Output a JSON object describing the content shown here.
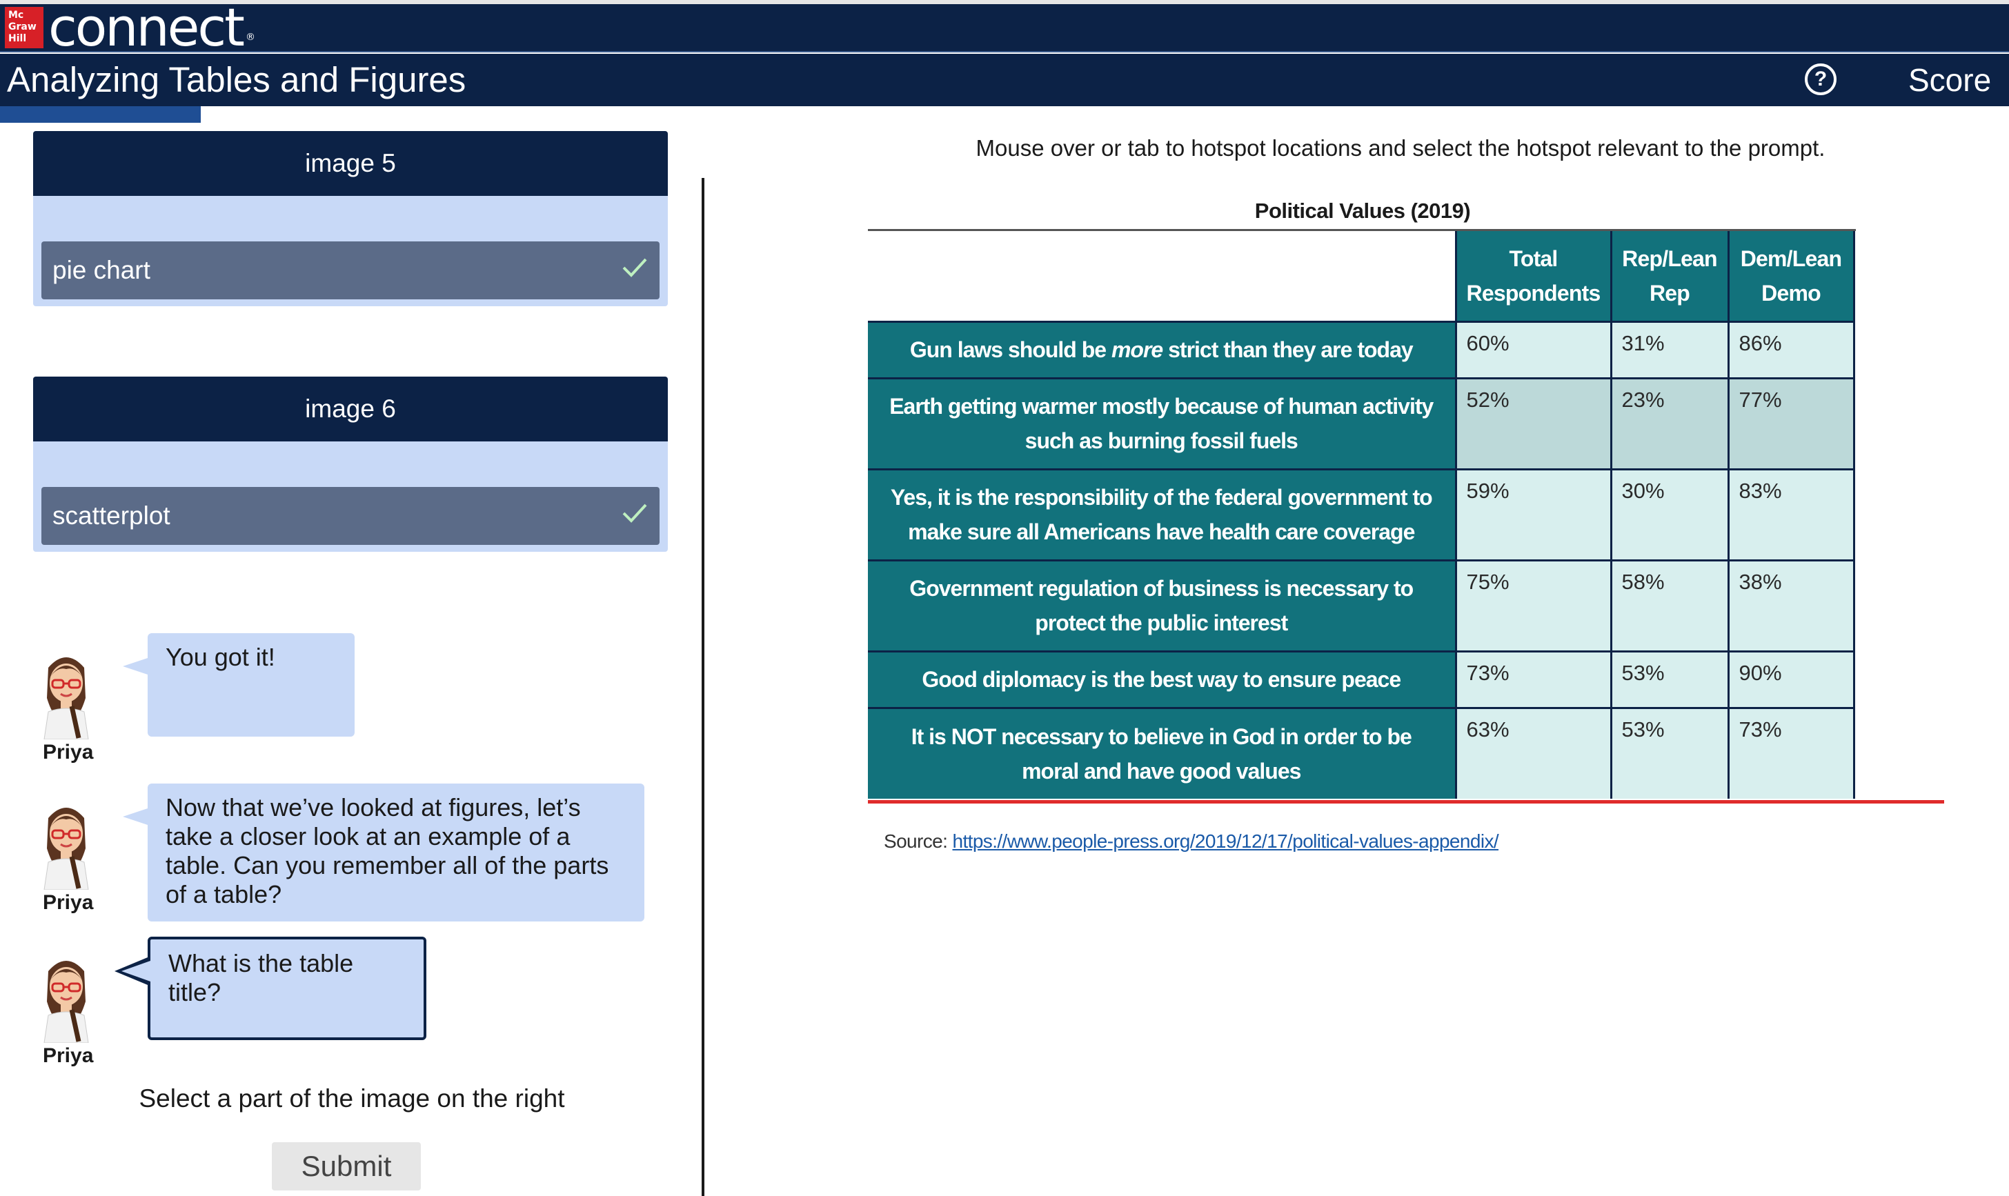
{
  "brand": {
    "logo_text": [
      "Mc",
      "Graw",
      "Hill"
    ],
    "product_name": "connect",
    "product_mark": "®"
  },
  "header": {
    "title": "Analyzing Tables and Figures",
    "help_icon": "question-circle-icon",
    "score_label": "Score",
    "progress_percent": 10
  },
  "cards": [
    {
      "heading": "image 5",
      "answer": "pie chart",
      "status_icon": "checkmark-icon"
    },
    {
      "heading": "image 6",
      "answer": "scatterplot",
      "status_icon": "checkmark-icon"
    }
  ],
  "chat": {
    "speaker": "Priya",
    "messages": [
      {
        "speaker": "Priya",
        "text": "You got it!"
      },
      {
        "speaker": "Priya",
        "text": "Now that we’ve looked at figures, let’s take a closer look at an example of a table.  Can you remember all of the parts of a table?"
      },
      {
        "speaker": "Priya",
        "text": "What is the table title?"
      }
    ]
  },
  "instruction": "Select a part of the image on the right",
  "submit_label": "Submit",
  "right_panel": {
    "prompt": "Mouse over or tab to hotspot locations and select the hotspot relevant to the prompt.",
    "table": {
      "title": "Political Values (2019)",
      "columns": [
        {
          "line1": "Total",
          "line2": "Respondents"
        },
        {
          "line1": "Rep/Lean",
          "line2": "Rep"
        },
        {
          "line1": "Dem/Lean",
          "line2": "Demo"
        }
      ],
      "rows": [
        {
          "pre": "Gun laws should be ",
          "em": "more",
          "post": " strict than they are today",
          "line2": "",
          "values": [
            "60%",
            "31%",
            "86%"
          ]
        },
        {
          "pre": "Earth getting warmer mostly because of human activity",
          "em": "",
          "post": "",
          "line2": "such as burning fossil fuels",
          "values": [
            "52%",
            "23%",
            "77%"
          ]
        },
        {
          "pre": "Yes, it is the responsibility of the federal government to",
          "em": "",
          "post": "",
          "line2": "make sure all Americans have health care coverage",
          "values": [
            "59%",
            "30%",
            "83%"
          ]
        },
        {
          "pre": "Government regulation of business is necessary to",
          "em": "",
          "post": "",
          "line2": "protect the public interest",
          "values": [
            "75%",
            "58%",
            "38%"
          ]
        },
        {
          "pre": "Good diplomacy is the best way to ensure peace",
          "em": "",
          "post": "",
          "line2": "",
          "values": [
            "73%",
            "53%",
            "90%"
          ]
        },
        {
          "pre": "It is NOT necessary to believe in God in order to be",
          "em": "",
          "post": "",
          "line2": "moral and have good values",
          "values": [
            "63%",
            "53%",
            "73%"
          ]
        }
      ]
    },
    "source_label": "Source: ",
    "source_url": "https://www.people-press.org/2019/12/17/political-values-appendix/"
  },
  "colors": {
    "navy": "#0c2246",
    "teal": "#12727c",
    "bubble": "#c8d9f7",
    "answer_bar": "#5b6b88",
    "rule_red": "#e02b2b"
  }
}
